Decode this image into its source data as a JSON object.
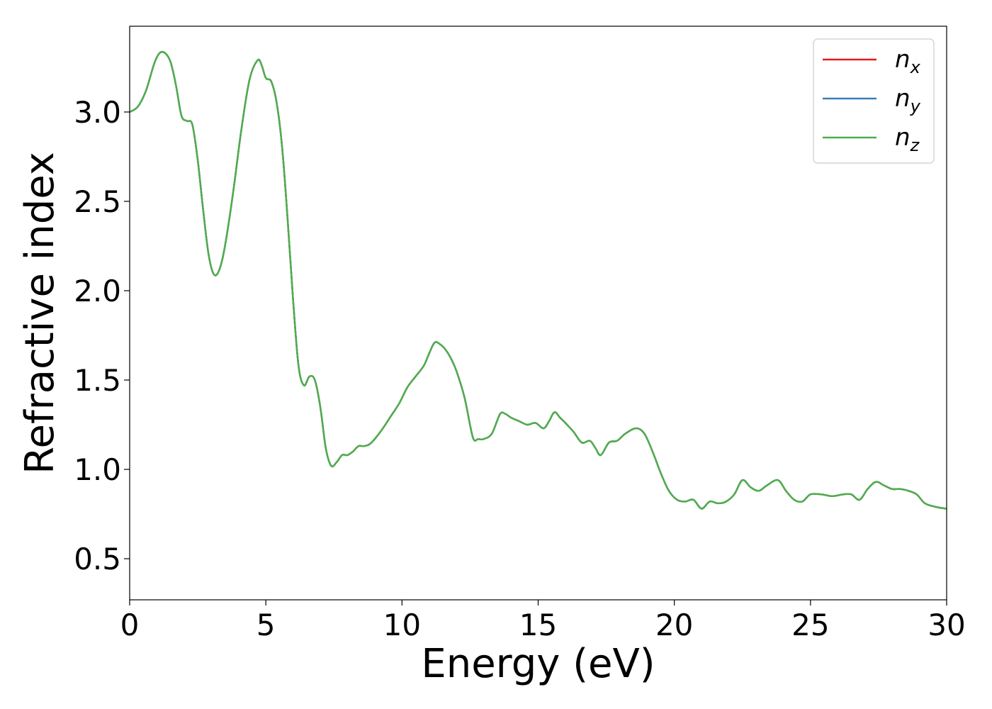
{
  "chart_data": {
    "type": "line",
    "title": "",
    "xlabel": "Energy (eV)",
    "ylabel": "Refractive index",
    "xlim": [
      0,
      30
    ],
    "ylim": [
      0.27,
      3.48
    ],
    "xticks": [
      0,
      5,
      10,
      15,
      20,
      25,
      30
    ],
    "xtick_labels": [
      "0",
      "5",
      "10",
      "15",
      "20",
      "25",
      "30"
    ],
    "yticks": [
      0.5,
      1.0,
      1.5,
      2.0,
      2.5,
      3.0
    ],
    "ytick_labels": [
      "0.5",
      "1.0",
      "1.5",
      "2.0",
      "2.5",
      "3.0"
    ],
    "grid": false,
    "legend_position": "top-right",
    "x": [
      0,
      0.3,
      0.6,
      0.9,
      1.1,
      1.3,
      1.5,
      1.7,
      1.9,
      2.1,
      2.3,
      2.5,
      2.7,
      2.9,
      3.1,
      3.3,
      3.5,
      3.8,
      4.1,
      4.4,
      4.7,
      4.85,
      5.0,
      5.2,
      5.4,
      5.6,
      5.8,
      6.0,
      6.2,
      6.4,
      6.6,
      6.8,
      7.0,
      7.2,
      7.4,
      7.6,
      7.8,
      8.0,
      8.2,
      8.4,
      8.6,
      8.8,
      9.0,
      9.3,
      9.6,
      9.9,
      10.2,
      10.5,
      10.8,
      11.0,
      11.2,
      11.4,
      11.6,
      11.8,
      12.0,
      12.3,
      12.6,
      12.8,
      13.0,
      13.3,
      13.6,
      13.8,
      14.0,
      14.3,
      14.6,
      14.9,
      15.2,
      15.4,
      15.6,
      15.8,
      16.0,
      16.3,
      16.6,
      16.9,
      17.1,
      17.3,
      17.6,
      17.9,
      18.2,
      18.6,
      18.9,
      19.2,
      19.5,
      19.8,
      20.1,
      20.4,
      20.7,
      21.0,
      21.3,
      21.6,
      21.9,
      22.2,
      22.5,
      22.8,
      23.1,
      23.4,
      23.8,
      24.1,
      24.4,
      24.7,
      25.0,
      25.4,
      25.8,
      26.2,
      26.5,
      26.8,
      27.1,
      27.4,
      27.7,
      28.0,
      28.3,
      28.6,
      28.9,
      29.2,
      29.6,
      30.0
    ],
    "series": [
      {
        "name": "x",
        "color": "#e41a1c",
        "values": [
          3.0,
          3.03,
          3.12,
          3.27,
          3.33,
          3.33,
          3.28,
          3.15,
          2.98,
          2.95,
          2.93,
          2.73,
          2.45,
          2.2,
          2.09,
          2.12,
          2.25,
          2.55,
          2.9,
          3.18,
          3.29,
          3.26,
          3.19,
          3.17,
          3.05,
          2.8,
          2.4,
          1.95,
          1.58,
          1.47,
          1.52,
          1.5,
          1.35,
          1.12,
          1.02,
          1.04,
          1.08,
          1.08,
          1.1,
          1.13,
          1.13,
          1.14,
          1.17,
          1.23,
          1.3,
          1.37,
          1.46,
          1.52,
          1.58,
          1.65,
          1.71,
          1.7,
          1.67,
          1.62,
          1.55,
          1.4,
          1.18,
          1.17,
          1.17,
          1.2,
          1.31,
          1.31,
          1.29,
          1.27,
          1.25,
          1.26,
          1.23,
          1.27,
          1.32,
          1.29,
          1.26,
          1.21,
          1.15,
          1.16,
          1.12,
          1.08,
          1.15,
          1.16,
          1.2,
          1.23,
          1.2,
          1.1,
          0.98,
          0.88,
          0.83,
          0.82,
          0.83,
          0.78,
          0.82,
          0.81,
          0.82,
          0.86,
          0.94,
          0.9,
          0.88,
          0.91,
          0.94,
          0.88,
          0.83,
          0.82,
          0.86,
          0.86,
          0.85,
          0.86,
          0.86,
          0.83,
          0.89,
          0.93,
          0.91,
          0.89,
          0.89,
          0.88,
          0.86,
          0.81,
          0.79,
          0.78
        ]
      },
      {
        "name": "y",
        "color": "#377eb8",
        "values": [
          3.0,
          3.03,
          3.12,
          3.27,
          3.33,
          3.33,
          3.28,
          3.15,
          2.98,
          2.95,
          2.93,
          2.73,
          2.45,
          2.2,
          2.09,
          2.12,
          2.25,
          2.55,
          2.9,
          3.18,
          3.29,
          3.26,
          3.19,
          3.17,
          3.05,
          2.8,
          2.4,
          1.95,
          1.58,
          1.47,
          1.52,
          1.5,
          1.35,
          1.12,
          1.02,
          1.04,
          1.08,
          1.08,
          1.1,
          1.13,
          1.13,
          1.14,
          1.17,
          1.23,
          1.3,
          1.37,
          1.46,
          1.52,
          1.58,
          1.65,
          1.71,
          1.7,
          1.67,
          1.62,
          1.55,
          1.4,
          1.18,
          1.17,
          1.17,
          1.2,
          1.31,
          1.31,
          1.29,
          1.27,
          1.25,
          1.26,
          1.23,
          1.27,
          1.32,
          1.29,
          1.26,
          1.21,
          1.15,
          1.16,
          1.12,
          1.08,
          1.15,
          1.16,
          1.2,
          1.23,
          1.2,
          1.1,
          0.98,
          0.88,
          0.83,
          0.82,
          0.83,
          0.78,
          0.82,
          0.81,
          0.82,
          0.86,
          0.94,
          0.9,
          0.88,
          0.91,
          0.94,
          0.88,
          0.83,
          0.82,
          0.86,
          0.86,
          0.85,
          0.86,
          0.86,
          0.83,
          0.89,
          0.93,
          0.91,
          0.89,
          0.89,
          0.88,
          0.86,
          0.81,
          0.79,
          0.78
        ]
      },
      {
        "name": "z",
        "color": "#4daf4a",
        "values": [
          3.0,
          3.03,
          3.12,
          3.27,
          3.33,
          3.33,
          3.28,
          3.15,
          2.98,
          2.95,
          2.93,
          2.73,
          2.45,
          2.2,
          2.09,
          2.12,
          2.25,
          2.55,
          2.9,
          3.18,
          3.29,
          3.26,
          3.19,
          3.17,
          3.05,
          2.8,
          2.4,
          1.95,
          1.58,
          1.47,
          1.52,
          1.5,
          1.35,
          1.12,
          1.02,
          1.04,
          1.08,
          1.08,
          1.1,
          1.13,
          1.13,
          1.14,
          1.17,
          1.23,
          1.3,
          1.37,
          1.46,
          1.52,
          1.58,
          1.65,
          1.71,
          1.7,
          1.67,
          1.62,
          1.55,
          1.4,
          1.18,
          1.17,
          1.17,
          1.2,
          1.31,
          1.31,
          1.29,
          1.27,
          1.25,
          1.26,
          1.23,
          1.27,
          1.32,
          1.29,
          1.26,
          1.21,
          1.15,
          1.16,
          1.12,
          1.08,
          1.15,
          1.16,
          1.2,
          1.23,
          1.2,
          1.1,
          0.98,
          0.88,
          0.83,
          0.82,
          0.83,
          0.78,
          0.82,
          0.81,
          0.82,
          0.86,
          0.94,
          0.9,
          0.88,
          0.91,
          0.94,
          0.88,
          0.83,
          0.82,
          0.86,
          0.86,
          0.85,
          0.86,
          0.86,
          0.83,
          0.89,
          0.93,
          0.91,
          0.89,
          0.89,
          0.88,
          0.86,
          0.81,
          0.79,
          0.78
        ]
      }
    ],
    "legend": [
      {
        "base": "n",
        "sub": "x",
        "color": "#e41a1c"
      },
      {
        "base": "n",
        "sub": "y",
        "color": "#377eb8"
      },
      {
        "base": "n",
        "sub": "z",
        "color": "#4daf4a"
      }
    ]
  }
}
